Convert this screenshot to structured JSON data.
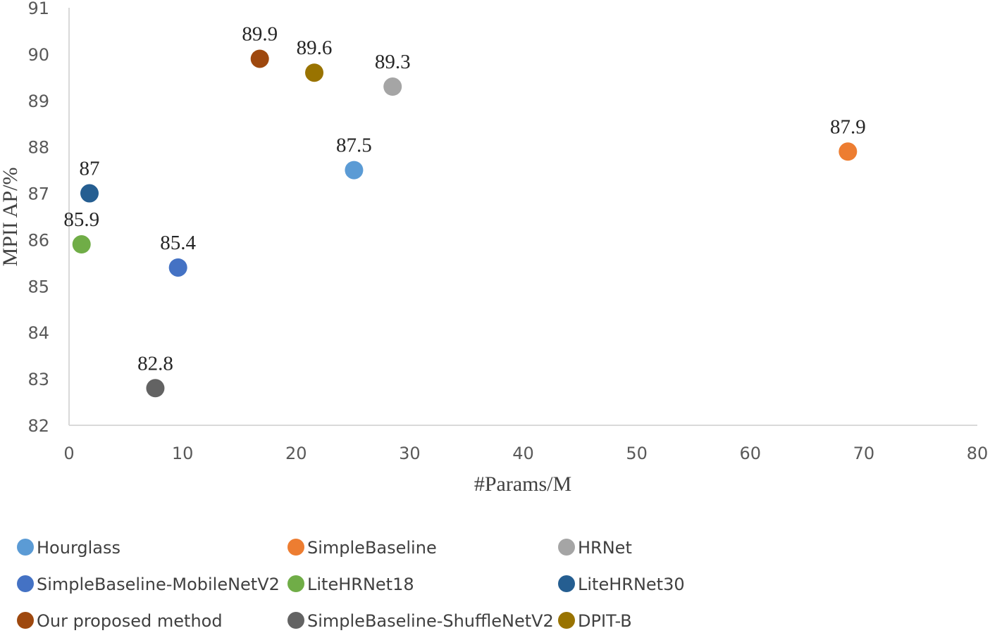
{
  "chart_data": {
    "type": "scatter",
    "title": "",
    "xlabel": "#Params/M",
    "ylabel": "MPII AP/%",
    "xlim": [
      0,
      80
    ],
    "ylim": [
      82,
      91
    ],
    "xticks": [
      "0",
      "10",
      "20",
      "30",
      "40",
      "50",
      "60",
      "70",
      "80"
    ],
    "yticks": [
      "82",
      "83",
      "84",
      "85",
      "86",
      "87",
      "88",
      "89",
      "90",
      "91"
    ],
    "grid": false,
    "legend_position": "bottom",
    "series": [
      {
        "name": "Hourglass",
        "color": "#5b9bd5",
        "x": 25.1,
        "y": 87.5,
        "label": "87.5"
      },
      {
        "name": "SimpleBaseline",
        "color": "#ed7d31",
        "x": 68.6,
        "y": 87.9,
        "label": "87.9"
      },
      {
        "name": "HRNet",
        "color": "#a5a5a5",
        "x": 28.5,
        "y": 89.3,
        "label": "89.3"
      },
      {
        "name": "SimpleBaseline-MobileNetV2",
        "color": "#4472c4",
        "x": 9.6,
        "y": 85.4,
        "label": "85.4"
      },
      {
        "name": "LiteHRNet18",
        "color": "#70ad47",
        "x": 1.1,
        "y": 85.9,
        "label": "85.9"
      },
      {
        "name": "LiteHRNet30",
        "color": "#255e91",
        "x": 1.8,
        "y": 87.0,
        "label": "87"
      },
      {
        "name": "Our proposed method",
        "color": "#9e480e",
        "x": 16.8,
        "y": 89.9,
        "label": "89.9"
      },
      {
        "name": "SimpleBaseline-ShuffleNetV2",
        "color": "#636363",
        "x": 7.6,
        "y": 82.8,
        "label": "82.8"
      },
      {
        "name": "DPIT-B",
        "color": "#997300",
        "x": 21.6,
        "y": 89.6,
        "label": "89.6"
      }
    ]
  }
}
